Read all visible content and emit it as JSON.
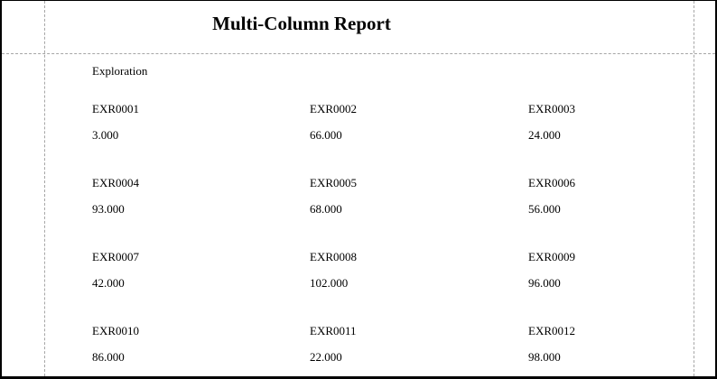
{
  "page": {
    "title": "Multi-Column Report"
  },
  "report": {
    "group_header": "Exploration",
    "entries": [
      {
        "id": "EXR0001",
        "value": "3.000"
      },
      {
        "id": "EXR0002",
        "value": "66.000"
      },
      {
        "id": "EXR0003",
        "value": "24.000"
      },
      {
        "id": "EXR0004",
        "value": "93.000"
      },
      {
        "id": "EXR0005",
        "value": "68.000"
      },
      {
        "id": "EXR0006",
        "value": "56.000"
      },
      {
        "id": "EXR0007",
        "value": "42.000"
      },
      {
        "id": "EXR0008",
        "value": "102.000"
      },
      {
        "id": "EXR0009",
        "value": "96.000"
      },
      {
        "id": "EXR0010",
        "value": "86.000"
      },
      {
        "id": "EXR0011",
        "value": "22.000"
      },
      {
        "id": "EXR0012",
        "value": "98.000"
      }
    ],
    "columns_per_row": 3
  },
  "colors": {
    "page_border": "#000000",
    "margin_guide": "#a6a6a6",
    "text": "#000000",
    "background": "#ffffff"
  }
}
